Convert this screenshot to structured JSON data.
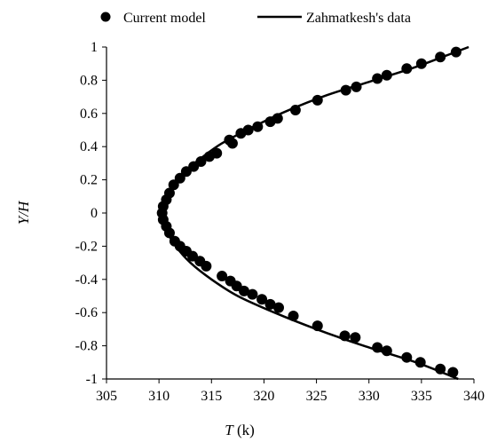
{
  "chart_data": {
    "type": "scatter",
    "xlabel_symbol": "T",
    "xlabel_unit": " (k)",
    "ylabel": "Y/H",
    "xlim": [
      305,
      340
    ],
    "ylim": [
      -1,
      1
    ],
    "xticks": [
      "305",
      "310",
      "315",
      "320",
      "325",
      "330",
      "335",
      "340"
    ],
    "yticks": [
      "-1",
      "-0.8",
      "-0.6",
      "-0.4",
      "-0.2",
      "0",
      "0.2",
      "0.4",
      "0.6",
      "0.8",
      "1"
    ],
    "legend_position": "top",
    "series": [
      {
        "name": "Current model",
        "style": "markers",
        "points": [
          [
            338.3,
            0.97
          ],
          [
            336.8,
            0.94
          ],
          [
            335.0,
            0.9
          ],
          [
            333.6,
            0.87
          ],
          [
            331.7,
            0.83
          ],
          [
            330.8,
            0.81
          ],
          [
            328.8,
            0.76
          ],
          [
            327.8,
            0.74
          ],
          [
            325.1,
            0.68
          ],
          [
            323.0,
            0.62
          ],
          [
            321.3,
            0.57
          ],
          [
            320.6,
            0.55
          ],
          [
            319.4,
            0.52
          ],
          [
            318.5,
            0.5
          ],
          [
            317.8,
            0.48
          ],
          [
            316.7,
            0.44
          ],
          [
            317.0,
            0.42
          ],
          [
            315.5,
            0.36
          ],
          [
            314.8,
            0.34
          ],
          [
            314.0,
            0.31
          ],
          [
            313.3,
            0.28
          ],
          [
            312.6,
            0.25
          ],
          [
            312.0,
            0.21
          ],
          [
            311.4,
            0.17
          ],
          [
            311.0,
            0.12
          ],
          [
            310.7,
            0.08
          ],
          [
            310.4,
            0.04
          ],
          [
            310.3,
            0.0
          ],
          [
            310.4,
            -0.04
          ],
          [
            310.7,
            -0.08
          ],
          [
            311.0,
            -0.12
          ],
          [
            311.5,
            -0.17
          ],
          [
            312.0,
            -0.2
          ],
          [
            312.6,
            -0.23
          ],
          [
            313.2,
            -0.26
          ],
          [
            313.9,
            -0.29
          ],
          [
            314.5,
            -0.32
          ],
          [
            316.0,
            -0.38
          ],
          [
            316.8,
            -0.41
          ],
          [
            317.4,
            -0.44
          ],
          [
            318.1,
            -0.47
          ],
          [
            318.9,
            -0.49
          ],
          [
            319.8,
            -0.52
          ],
          [
            320.6,
            -0.55
          ],
          [
            321.4,
            -0.57
          ],
          [
            322.8,
            -0.62
          ],
          [
            325.1,
            -0.68
          ],
          [
            327.7,
            -0.74
          ],
          [
            328.7,
            -0.75
          ],
          [
            330.8,
            -0.81
          ],
          [
            331.7,
            -0.83
          ],
          [
            333.6,
            -0.87
          ],
          [
            334.9,
            -0.9
          ],
          [
            336.8,
            -0.94
          ],
          [
            338.0,
            -0.96
          ]
        ]
      },
      {
        "name": "Zahmatkesh's data",
        "style": "line",
        "points": [
          [
            339.5,
            1.0
          ],
          [
            337.0,
            0.94
          ],
          [
            334.0,
            0.87
          ],
          [
            330.0,
            0.79
          ],
          [
            326.0,
            0.71
          ],
          [
            322.0,
            0.61
          ],
          [
            319.0,
            0.52
          ],
          [
            316.0,
            0.42
          ],
          [
            314.0,
            0.33
          ],
          [
            312.5,
            0.25
          ],
          [
            311.3,
            0.16
          ],
          [
            310.6,
            0.08
          ],
          [
            310.3,
            0.0
          ],
          [
            310.7,
            -0.1
          ],
          [
            311.6,
            -0.2
          ],
          [
            313.0,
            -0.3
          ],
          [
            315.0,
            -0.4
          ],
          [
            317.5,
            -0.5
          ],
          [
            321.0,
            -0.6
          ],
          [
            325.0,
            -0.7
          ],
          [
            329.5,
            -0.8
          ],
          [
            334.5,
            -0.9
          ],
          [
            338.5,
            -1.0
          ]
        ]
      }
    ]
  }
}
